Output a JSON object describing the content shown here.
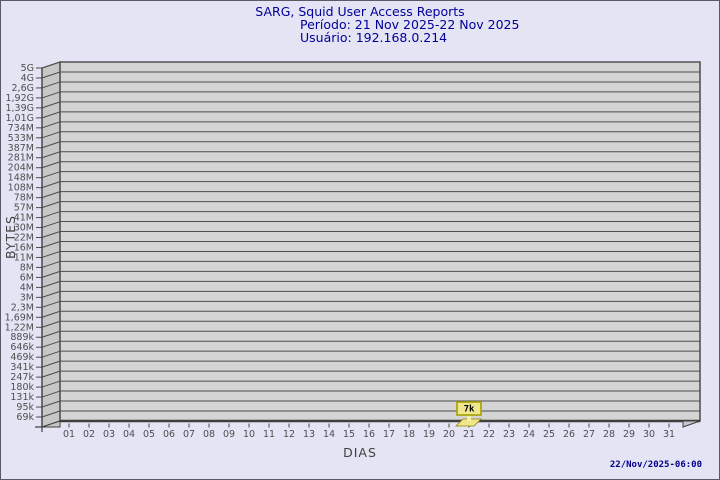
{
  "header": {
    "title": "SARG, Squid User Access Reports",
    "period": "Período: 21 Nov 2025-22 Nov 2025",
    "user": "Usuário: 192.168.0.214"
  },
  "footer": {
    "generated": "22/Nov/2025-06:00"
  },
  "colors": {
    "page_bg": "#e4e4f4",
    "title_text": "#000099",
    "timestamp_text": "#00008b",
    "plot_wall": "#d4d4d4",
    "plot_side_wall": "#c7c7c7",
    "grid_line": "#4c4c4c",
    "plot_border": "#3f3f3f",
    "tick_text": "#4f4f4f",
    "bar_fill": "#f0e68c",
    "bar_outline": "#8b8000",
    "value_box_fill": "#f0e68c",
    "value_box_border": "#a6a000"
  },
  "chart_data": {
    "type": "bar",
    "title": "SARG, Squid User Access Reports",
    "subtitle1": "Período: 21 Nov 2025-22 Nov 2025",
    "subtitle2": "Usuário: 192.168.0.214",
    "xlabel": "DIAS",
    "ylabel": "BYTES",
    "x_axis_unit": "day of month",
    "y_axis_scale": "logarithmic-bytes",
    "grid": true,
    "legend_position": "none",
    "categories": [
      "01",
      "02",
      "03",
      "04",
      "05",
      "06",
      "07",
      "08",
      "09",
      "10",
      "11",
      "12",
      "13",
      "14",
      "15",
      "16",
      "17",
      "18",
      "19",
      "20",
      "21",
      "22",
      "23",
      "24",
      "25",
      "26",
      "27",
      "28",
      "29",
      "30",
      "31"
    ],
    "y_ticks": [
      "5G",
      "4G",
      "2,6G",
      "1,92G",
      "1,39G",
      "1,01G",
      "734M",
      "533M",
      "387M",
      "281M",
      "204M",
      "148M",
      "108M",
      "78M",
      "57M",
      "41M",
      "30M",
      "22M",
      "16M",
      "11M",
      "8M",
      "6M",
      "4M",
      "3M",
      "2,3M",
      "1,69M",
      "1,22M",
      "889k",
      "646k",
      "469k",
      "341k",
      "247k",
      "180k",
      "131k",
      "95k",
      "69k"
    ],
    "values": [
      null,
      null,
      null,
      null,
      null,
      null,
      null,
      null,
      null,
      null,
      null,
      null,
      null,
      null,
      null,
      null,
      null,
      null,
      null,
      null,
      7000,
      null,
      null,
      null,
      null,
      null,
      null,
      null,
      null,
      null,
      null
    ],
    "bars": [
      {
        "category": "21",
        "value_label": "7k",
        "value_bytes": 7000
      }
    ]
  }
}
